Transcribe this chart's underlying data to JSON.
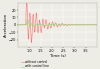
{
  "xlabel": "Time (s)",
  "ylabel": "Acceleration",
  "xlim": [
    0.5,
    4.0
  ],
  "ylim": [
    -30,
    30
  ],
  "yticks": [
    -20,
    -10,
    0,
    10,
    20
  ],
  "xticks": [
    1.0,
    1.5,
    2.0,
    2.5,
    3.0,
    3.5
  ],
  "legend": [
    "without control",
    "with control line"
  ],
  "line_colors": [
    "#ff7070",
    "#70e070"
  ],
  "background_color": "#eeede5",
  "grid_color": "#ffffff",
  "figsize": [
    1.0,
    0.69
  ],
  "dpi": 100
}
